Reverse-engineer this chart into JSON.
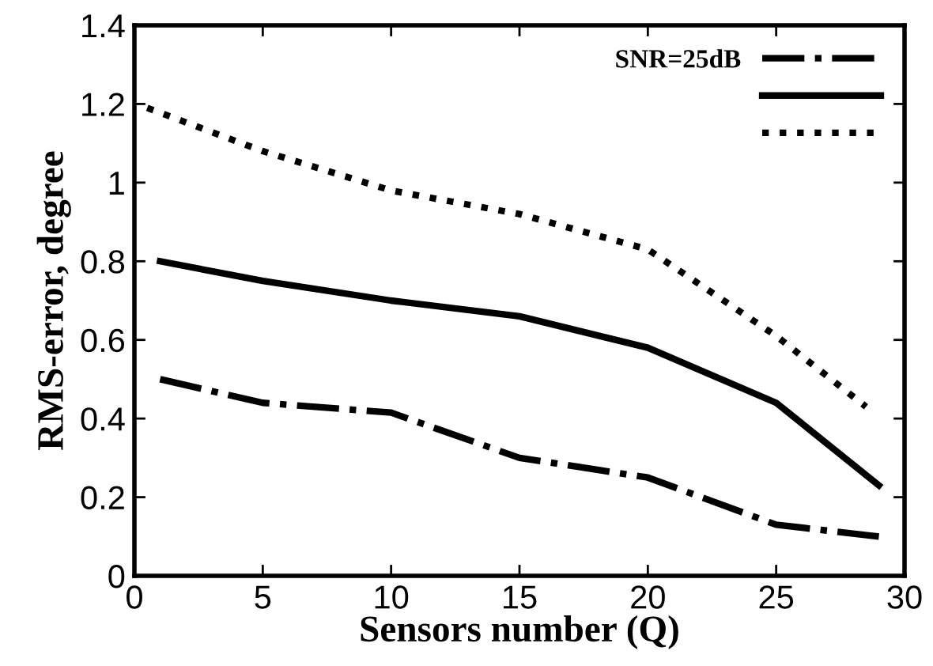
{
  "chart_data": {
    "type": "line",
    "xlabel": "Sensors number (Q)",
    "ylabel": "RMS-error, degree",
    "xlim": [
      0,
      30
    ],
    "xticks": [
      0,
      5,
      10,
      15,
      20,
      25,
      30
    ],
    "ylim": [
      0,
      1.4
    ],
    "yticks": [
      0,
      0.2,
      0.4,
      0.6,
      0.8,
      1,
      1.2,
      1.4
    ],
    "grid": false,
    "legend": "top right",
    "marker": "none",
    "series": [
      {
        "name": "SNR=25dB",
        "color": "#000000",
        "line_style": "dashdot",
        "x": [
          1,
          5,
          10,
          15,
          20,
          25,
          29
        ],
        "values": [
          0.5,
          0.44,
          0.415,
          0.3,
          0.25,
          0.13,
          0.1
        ]
      },
      {
        "color": "#000000",
        "line_style": "solid",
        "x": [
          1,
          5,
          10,
          15,
          20,
          25,
          29
        ],
        "values": [
          0.8,
          0.75,
          0.7,
          0.66,
          0.58,
          0.44,
          0.23
        ]
      },
      {
        "color": "#000000",
        "line_style": "dotted",
        "x": [
          0.5,
          5,
          10,
          15,
          20,
          25,
          28.5
        ],
        "values": [
          1.19,
          1.08,
          0.98,
          0.92,
          0.83,
          0.61,
          0.43
        ]
      }
    ]
  }
}
